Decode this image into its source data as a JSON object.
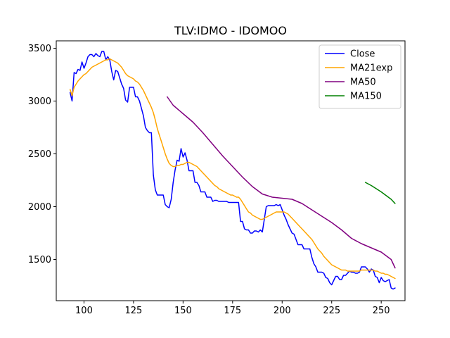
{
  "chart_data": {
    "type": "line",
    "title": "TLV:IDMO - IDOMOO",
    "xlabel": "",
    "ylabel": "",
    "xlim": [
      86,
      262
    ],
    "ylim": [
      1110,
      3570
    ],
    "xticks": [
      100,
      125,
      150,
      175,
      200,
      225,
      250
    ],
    "yticks": [
      1500,
      2000,
      2500,
      3000,
      3500
    ],
    "grid": false,
    "legend_position": "top-right",
    "series": [
      {
        "name": "Close",
        "color": "#0000ff",
        "x": [
          93,
          94,
          95,
          96,
          97,
          98,
          99,
          100,
          101,
          102,
          103,
          104,
          105,
          106,
          107,
          108,
          109,
          110,
          111,
          112,
          113,
          114,
          115,
          116,
          117,
          118,
          119,
          120,
          121,
          122,
          123,
          124,
          125,
          126,
          127,
          128,
          129,
          130,
          131,
          132,
          133,
          134,
          135,
          136,
          137,
          138,
          139,
          140,
          141,
          142,
          143,
          144,
          145,
          146,
          147,
          148,
          149,
          150,
          151,
          152,
          153,
          154,
          155,
          156,
          157,
          158,
          159,
          160,
          161,
          162,
          163,
          164,
          165,
          166,
          167,
          168,
          169,
          170,
          171,
          172,
          173,
          174,
          175,
          176,
          177,
          178,
          179,
          180,
          181,
          182,
          183,
          184,
          185,
          186,
          187,
          188,
          189,
          190,
          191,
          192,
          193,
          194,
          195,
          196,
          197,
          198,
          199,
          200,
          201,
          202,
          203,
          204,
          205,
          206,
          207,
          208,
          209,
          210,
          211,
          212,
          213,
          214,
          215,
          216,
          217,
          218,
          219,
          220,
          221,
          222,
          223,
          224,
          225,
          226,
          227,
          228,
          229,
          230,
          231,
          232,
          233,
          234,
          235,
          236,
          237,
          238,
          239,
          240,
          241,
          242,
          243,
          244,
          245,
          246,
          247,
          248,
          249,
          250,
          251,
          252,
          253,
          254,
          255,
          256,
          257
        ],
        "values": [
          3080,
          3000,
          3270,
          3260,
          3300,
          3290,
          3370,
          3310,
          3360,
          3420,
          3440,
          3440,
          3420,
          3450,
          3430,
          3420,
          3470,
          3470,
          3390,
          3420,
          3390,
          3280,
          3200,
          3290,
          3280,
          3220,
          3160,
          3120,
          3010,
          2990,
          3130,
          3130,
          3130,
          3040,
          3040,
          3000,
          2930,
          2860,
          2750,
          2720,
          2700,
          2700,
          2300,
          2160,
          2110,
          2110,
          2110,
          2110,
          2020,
          2000,
          1990,
          2070,
          2230,
          2350,
          2440,
          2430,
          2550,
          2470,
          2510,
          2440,
          2340,
          2340,
          2340,
          2230,
          2230,
          2200,
          2140,
          2140,
          2140,
          2090,
          2090,
          2090,
          2050,
          2060,
          2060,
          2050,
          2050,
          2050,
          2050,
          2050,
          2040,
          2040,
          2040,
          2040,
          2040,
          2040,
          1860,
          1860,
          1790,
          1780,
          1780,
          1750,
          1750,
          1770,
          1770,
          1760,
          1780,
          1760,
          1880,
          2000,
          2010,
          2010,
          2010,
          2010,
          2020,
          2010,
          2020,
          1970,
          1920,
          1880,
          1830,
          1790,
          1750,
          1740,
          1690,
          1640,
          1640,
          1640,
          1600,
          1600,
          1600,
          1600,
          1520,
          1460,
          1430,
          1380,
          1380,
          1380,
          1370,
          1330,
          1320,
          1280,
          1260,
          1300,
          1340,
          1340,
          1310,
          1310,
          1350,
          1350,
          1370,
          1390,
          1380,
          1380,
          1370,
          1370,
          1380,
          1430,
          1430,
          1430,
          1410,
          1380,
          1410,
          1400,
          1340,
          1330,
          1280,
          1330,
          1300,
          1290,
          1300,
          1310,
          1230,
          1220,
          1230
        ]
      },
      {
        "name": "MA21exp",
        "color": "#ffa500",
        "x": [
          93,
          94,
          95,
          96,
          97,
          98,
          99,
          100,
          101,
          102,
          103,
          104,
          105,
          106,
          107,
          108,
          109,
          110,
          111,
          112,
          113,
          114,
          115,
          116,
          117,
          118,
          119,
          120,
          121,
          122,
          123,
          124,
          125,
          126,
          127,
          128,
          129,
          130,
          131,
          132,
          133,
          134,
          135,
          136,
          137,
          138,
          139,
          140,
          141,
          142,
          143,
          144,
          145,
          146,
          147,
          148,
          149,
          150,
          151,
          152,
          153,
          154,
          155,
          156,
          157,
          158,
          159,
          160,
          161,
          162,
          163,
          164,
          165,
          166,
          167,
          168,
          169,
          170,
          171,
          172,
          173,
          174,
          175,
          176,
          177,
          178,
          179,
          180,
          181,
          182,
          183,
          184,
          185,
          186,
          187,
          188,
          189,
          190,
          191,
          192,
          193,
          194,
          195,
          196,
          197,
          198,
          199,
          200,
          201,
          202,
          203,
          204,
          205,
          206,
          207,
          208,
          209,
          210,
          211,
          212,
          213,
          214,
          215,
          216,
          217,
          218,
          219,
          220,
          221,
          222,
          223,
          224,
          225,
          226,
          227,
          228,
          229,
          230,
          231,
          232,
          233,
          234,
          235,
          236,
          237,
          238,
          239,
          240,
          241,
          242,
          243,
          244,
          245,
          246,
          247,
          248,
          249,
          250,
          251,
          252,
          253,
          254,
          255,
          256,
          257
        ],
        "values": [
          3110,
          3050,
          3130,
          3160,
          3190,
          3210,
          3230,
          3250,
          3260,
          3280,
          3300,
          3320,
          3330,
          3340,
          3350,
          3360,
          3370,
          3380,
          3390,
          3390,
          3400,
          3390,
          3380,
          3370,
          3360,
          3340,
          3320,
          3290,
          3260,
          3240,
          3230,
          3220,
          3210,
          3190,
          3180,
          3160,
          3130,
          3100,
          3060,
          3020,
          2980,
          2940,
          2890,
          2820,
          2740,
          2680,
          2620,
          2560,
          2500,
          2450,
          2410,
          2390,
          2380,
          2380,
          2390,
          2390,
          2400,
          2400,
          2410,
          2420,
          2420,
          2410,
          2400,
          2390,
          2380,
          2360,
          2340,
          2320,
          2300,
          2280,
          2260,
          2240,
          2220,
          2200,
          2190,
          2170,
          2160,
          2150,
          2140,
          2130,
          2120,
          2110,
          2110,
          2100,
          2090,
          2090,
          2070,
          2040,
          2010,
          1980,
          1950,
          1940,
          1920,
          1910,
          1900,
          1890,
          1880,
          1880,
          1890,
          1900,
          1910,
          1920,
          1930,
          1940,
          1950,
          1950,
          1950,
          1950,
          1950,
          1940,
          1930,
          1910,
          1890,
          1870,
          1850,
          1830,
          1810,
          1790,
          1770,
          1750,
          1730,
          1710,
          1690,
          1660,
          1630,
          1600,
          1580,
          1560,
          1530,
          1510,
          1490,
          1470,
          1450,
          1440,
          1430,
          1420,
          1410,
          1400,
          1400,
          1400,
          1390,
          1390,
          1390,
          1390,
          1390,
          1390,
          1390,
          1400,
          1400,
          1400,
          1400,
          1400,
          1400,
          1400,
          1390,
          1390,
          1380,
          1370,
          1370,
          1360,
          1360,
          1350,
          1340,
          1330,
          1320
        ]
      },
      {
        "name": "MA50",
        "color": "#800080",
        "x": [
          142,
          145,
          150,
          155,
          160,
          165,
          170,
          175,
          180,
          185,
          190,
          195,
          200,
          205,
          210,
          215,
          220,
          225,
          230,
          235,
          240,
          245,
          250,
          255,
          257
        ],
        "values": [
          3040,
          2960,
          2880,
          2800,
          2700,
          2590,
          2480,
          2380,
          2280,
          2190,
          2120,
          2090,
          2080,
          2070,
          2030,
          1970,
          1910,
          1850,
          1780,
          1700,
          1650,
          1610,
          1570,
          1500,
          1420
        ]
      },
      {
        "name": "MA150",
        "color": "#008000",
        "x": [
          242,
          245,
          250,
          255,
          257
        ],
        "values": [
          2230,
          2200,
          2140,
          2070,
          2030
        ]
      }
    ]
  }
}
